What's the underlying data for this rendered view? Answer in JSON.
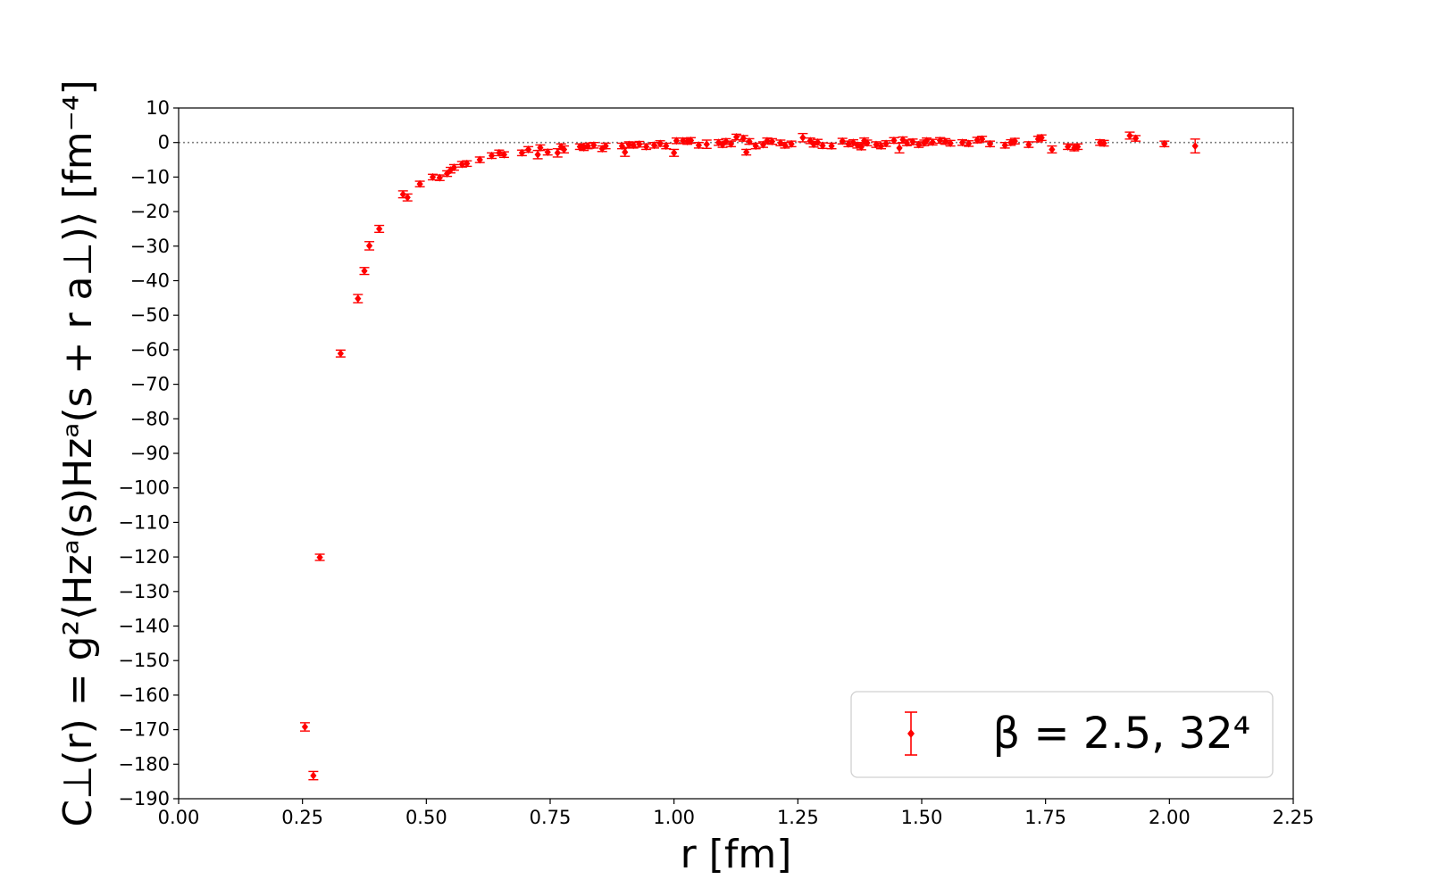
{
  "chart_data": {
    "type": "scatter",
    "errorbars": true,
    "xlabel": "r [fm]",
    "ylabel": "C⊥(r) = g²⟨Hzᵃ(s)Hzᵃ(s + r a⊥)⟩ [fm⁻⁴]",
    "xlim": [
      0.0,
      2.25
    ],
    "ylim": [
      -190,
      10
    ],
    "xticks": [
      "0.00",
      "0.25",
      "0.50",
      "0.75",
      "1.00",
      "1.25",
      "1.50",
      "1.75",
      "2.00",
      "2.25"
    ],
    "yticks": [
      "10",
      "0",
      "−10",
      "−20",
      "−30",
      "−40",
      "−50",
      "−60",
      "−70",
      "−80",
      "−90",
      "−100",
      "−110",
      "−120",
      "−130",
      "−140",
      "−150",
      "−160",
      "−170",
      "−180",
      "−190"
    ],
    "reference_line": {
      "y": 0,
      "style": "dotted",
      "color": "#808080"
    },
    "grid": false,
    "legend_position": "bottom-right",
    "series": [
      {
        "name": "β = 2.5, 32⁴",
        "color": "#ff0000",
        "marker": "diamond",
        "points": [
          [
            0.255,
            -169.2,
            1.2
          ],
          [
            0.272,
            -183.3,
            1.2
          ],
          [
            0.285,
            -120.1,
            0.9
          ],
          [
            0.327,
            -61.1,
            1.0
          ],
          [
            0.362,
            -45.2,
            1.2
          ],
          [
            0.375,
            -37.2,
            1.0
          ],
          [
            0.385,
            -29.9,
            1.2
          ],
          [
            0.405,
            -25.0,
            1.0
          ],
          [
            0.453,
            -15.0,
            1.0
          ],
          [
            0.462,
            -15.9,
            1.0
          ],
          [
            0.487,
            -12.0,
            0.8
          ],
          [
            0.513,
            -10.0,
            0.8
          ],
          [
            0.527,
            -10.2,
            0.8
          ],
          [
            0.542,
            -9.0,
            0.8
          ],
          [
            0.549,
            -8.0,
            0.8
          ],
          [
            0.556,
            -7.2,
            0.8
          ],
          [
            0.572,
            -6.3,
            0.8
          ],
          [
            0.582,
            -6.1,
            0.8
          ],
          [
            0.608,
            -5.0,
            0.8
          ],
          [
            0.632,
            -3.8,
            0.8
          ],
          [
            0.647,
            -3.0,
            0.8
          ],
          [
            0.657,
            -3.5,
            0.8
          ],
          [
            0.693,
            -3.0,
            0.8
          ],
          [
            0.706,
            -2.0,
            0.8
          ],
          [
            0.725,
            -3.5,
            1.2
          ],
          [
            0.73,
            -1.5,
            0.8
          ],
          [
            0.745,
            -2.8,
            0.8
          ],
          [
            0.765,
            -3.0,
            1.2
          ],
          [
            0.772,
            -1.2,
            0.8
          ],
          [
            0.778,
            -2.0,
            1.0
          ],
          [
            0.81,
            -1.2,
            0.8
          ],
          [
            0.818,
            -1.5,
            0.8
          ],
          [
            0.826,
            -1.0,
            0.8
          ],
          [
            0.838,
            -0.8,
            0.8
          ],
          [
            0.855,
            -1.8,
            0.8
          ],
          [
            0.862,
            -1.0,
            0.8
          ],
          [
            0.895,
            -1.0,
            0.8
          ],
          [
            0.901,
            -2.8,
            1.2
          ],
          [
            0.909,
            -0.6,
            0.8
          ],
          [
            0.918,
            -0.8,
            0.8
          ],
          [
            0.93,
            -0.5,
            0.8
          ],
          [
            0.944,
            -1.2,
            0.8
          ],
          [
            0.96,
            -0.8,
            0.8
          ],
          [
            0.972,
            -0.3,
            0.8
          ],
          [
            0.984,
            -1.0,
            0.8
          ],
          [
            1.0,
            -3.0,
            1.0
          ],
          [
            1.005,
            0.5,
            0.8
          ],
          [
            1.018,
            0.5,
            0.8
          ],
          [
            1.027,
            0.3,
            0.8
          ],
          [
            1.034,
            0.6,
            0.8
          ],
          [
            1.05,
            -0.8,
            0.8
          ],
          [
            1.066,
            -0.5,
            1.2
          ],
          [
            1.09,
            0.0,
            0.8
          ],
          [
            1.098,
            -0.6,
            0.8
          ],
          [
            1.105,
            0.3,
            0.8
          ],
          [
            1.115,
            -0.4,
            0.8
          ],
          [
            1.126,
            1.6,
            0.8
          ],
          [
            1.14,
            1.2,
            0.8
          ],
          [
            1.146,
            -2.8,
            0.8
          ],
          [
            1.152,
            0.3,
            0.8
          ],
          [
            1.165,
            -1.0,
            0.8
          ],
          [
            1.18,
            -0.6,
            0.8
          ],
          [
            1.188,
            0.5,
            0.8
          ],
          [
            1.198,
            0.3,
            0.8
          ],
          [
            1.215,
            -0.1,
            0.8
          ],
          [
            1.224,
            -0.8,
            0.8
          ],
          [
            1.237,
            -0.4,
            0.8
          ],
          [
            1.26,
            1.4,
            1.2
          ],
          [
            1.275,
            0.5,
            0.8
          ],
          [
            1.282,
            -0.5,
            0.8
          ],
          [
            1.29,
            0.1,
            0.8
          ],
          [
            1.3,
            -0.9,
            0.8
          ],
          [
            1.318,
            -1.0,
            0.8
          ],
          [
            1.34,
            0.4,
            0.8
          ],
          [
            1.352,
            -0.4,
            0.8
          ],
          [
            1.362,
            0.0,
            0.8
          ],
          [
            1.37,
            -0.8,
            0.8
          ],
          [
            1.378,
            -1.3,
            0.8
          ],
          [
            1.384,
            0.5,
            0.8
          ],
          [
            1.39,
            -0.1,
            0.8
          ],
          [
            1.408,
            -0.6,
            0.8
          ],
          [
            1.418,
            -1.0,
            0.8
          ],
          [
            1.428,
            -0.3,
            0.8
          ],
          [
            1.444,
            0.6,
            0.8
          ],
          [
            1.455,
            -1.6,
            1.4
          ],
          [
            1.462,
            0.8,
            0.8
          ],
          [
            1.47,
            -0.1,
            0.8
          ],
          [
            1.482,
            0.2,
            0.8
          ],
          [
            1.494,
            -0.6,
            0.8
          ],
          [
            1.505,
            -0.1,
            0.8
          ],
          [
            1.51,
            0.5,
            0.8
          ],
          [
            1.522,
            0.1,
            0.8
          ],
          [
            1.537,
            0.6,
            0.8
          ],
          [
            1.548,
            0.3,
            0.8
          ],
          [
            1.558,
            -0.2,
            0.8
          ],
          [
            1.582,
            0.0,
            0.8
          ],
          [
            1.595,
            -0.3,
            0.8
          ],
          [
            1.612,
            0.7,
            0.8
          ],
          [
            1.622,
            1.0,
            0.8
          ],
          [
            1.638,
            -0.4,
            0.8
          ],
          [
            1.668,
            -0.8,
            0.8
          ],
          [
            1.68,
            0.0,
            0.8
          ],
          [
            1.688,
            0.4,
            0.8
          ],
          [
            1.716,
            -0.6,
            0.8
          ],
          [
            1.735,
            1.0,
            0.8
          ],
          [
            1.742,
            1.4,
            0.8
          ],
          [
            1.763,
            -2.0,
            1.0
          ],
          [
            1.795,
            -1.2,
            0.8
          ],
          [
            1.808,
            -1.6,
            0.8
          ],
          [
            1.815,
            -1.2,
            0.8
          ],
          [
            1.86,
            0.0,
            0.8
          ],
          [
            1.868,
            -0.2,
            0.8
          ],
          [
            1.92,
            2.0,
            1.0
          ],
          [
            1.932,
            1.2,
            0.8
          ],
          [
            1.99,
            -0.4,
            0.8
          ],
          [
            2.052,
            -1.0,
            2.0
          ]
        ]
      }
    ]
  }
}
